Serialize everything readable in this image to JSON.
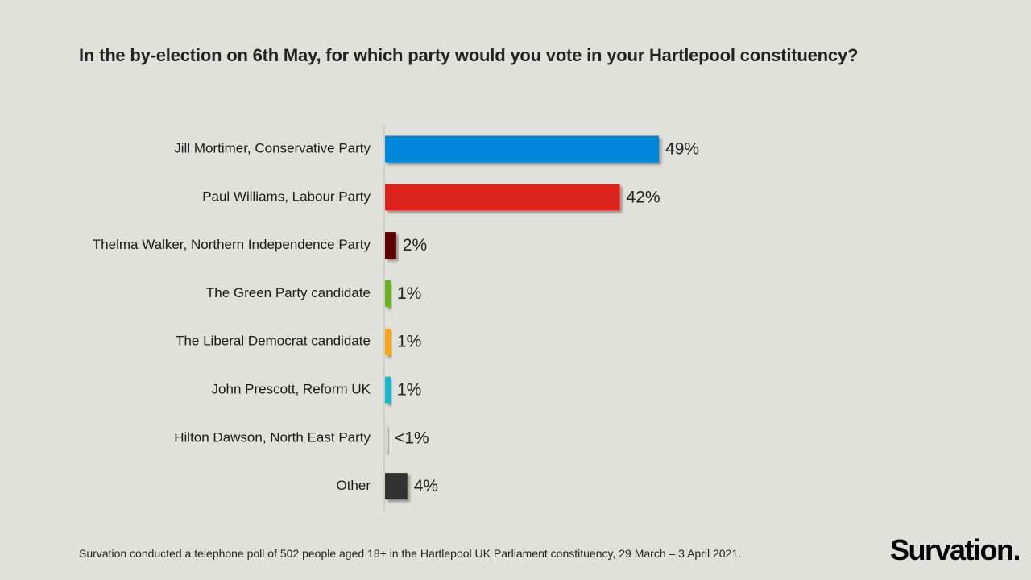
{
  "title": "In the by-election on 6th May, for which party would you vote in your Hartlepool constituency?",
  "footnote": "Survation conducted a telephone poll of 502 people aged 18+ in the Hartlepool UK Parliament constituency, 29 March – 3 April 2021.",
  "logo": "Survation.",
  "chart_data": {
    "type": "bar",
    "orientation": "horizontal",
    "categories": [
      "Jill Mortimer, Conservative Party",
      "Paul Williams, Labour Party",
      "Thelma Walker, Northern Independence Party",
      "The Green Party candidate",
      "The Liberal Democrat candidate",
      "John Prescott, Reform UK",
      "Hilton Dawson, North East Party",
      "Other"
    ],
    "values": [
      49,
      42,
      2,
      1,
      1,
      1,
      0.3,
      4
    ],
    "value_labels": [
      "49%",
      "42%",
      "2%",
      "1%",
      "1%",
      "1%",
      "<1%",
      "4%"
    ],
    "colors": [
      "#0087dc",
      "#dc241f",
      "#5c0000",
      "#6ab023",
      "#faa61a",
      "#12b6cf",
      "#d8d8d8",
      "#333333"
    ],
    "xlim": [
      0,
      100
    ],
    "grid": false,
    "legend": "none"
  }
}
